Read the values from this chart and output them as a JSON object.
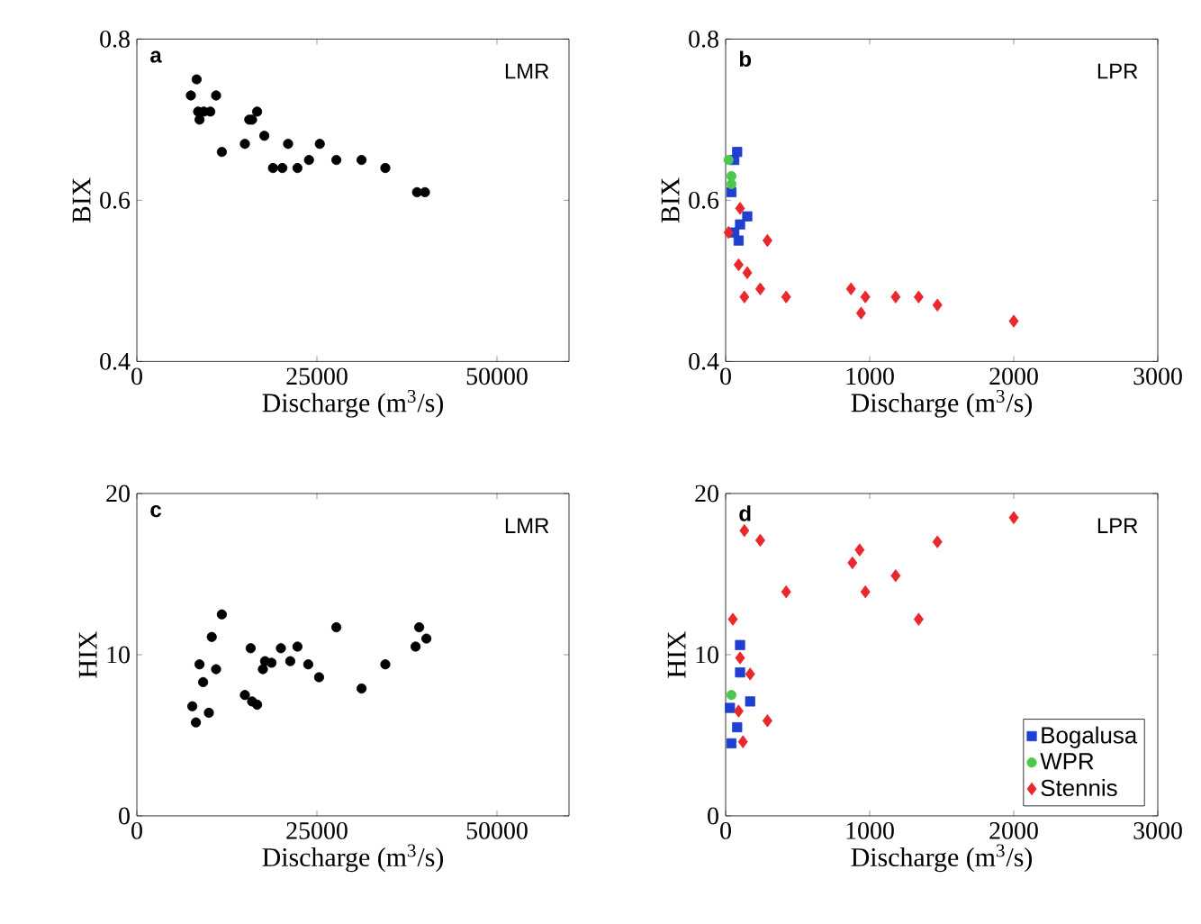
{
  "chart_data": [
    {
      "type": "scatter",
      "xlabel": "Discharge (m$^{3}$/s)",
      "ylabel": "BIX",
      "annotations": [
        "a",
        "LMR"
      ],
      "xlim": [
        0,
        60000
      ],
      "xticks": [
        0,
        25000,
        50000
      ],
      "ylim": [
        0.4,
        0.8
      ],
      "yticks": [
        0.4,
        0.6,
        0.8
      ],
      "grid": false,
      "legend": false,
      "series": [
        {
          "color": "#000000",
          "marker": "circle",
          "x": [
            8300,
            7500,
            11000,
            8500,
            9300,
            10200,
            8700,
            11800,
            15000,
            16700,
            16000,
            15600,
            17700,
            21000,
            18900,
            20200,
            22300,
            23900,
            25400,
            27700,
            31200,
            34500,
            38900,
            40000
          ],
          "values": [
            0.75,
            0.73,
            0.73,
            0.71,
            0.71,
            0.71,
            0.7,
            0.66,
            0.67,
            0.71,
            0.7,
            0.7,
            0.68,
            0.67,
            0.64,
            0.64,
            0.64,
            0.65,
            0.67,
            0.65,
            0.65,
            0.64,
            0.61,
            0.61
          ]
        }
      ]
    },
    {
      "type": "scatter",
      "xlabel": "Discharge (m$^{3}$/s)",
      "ylabel": "BIX",
      "annotations": [
        "b",
        "LPR"
      ],
      "xlim": [
        0,
        3000
      ],
      "xticks": [
        0,
        1000,
        2000,
        3000
      ],
      "ylim": [
        0.4,
        0.8
      ],
      "yticks": [
        0.4,
        0.6,
        0.8
      ],
      "grid": false,
      "legend": false,
      "series": [
        {
          "color": "#1f3fd0",
          "marker": "square",
          "x": [
            80,
            60,
            40,
            150,
            100,
            90,
            60
          ],
          "values": [
            0.66,
            0.65,
            0.61,
            0.58,
            0.57,
            0.55,
            0.56
          ]
        },
        {
          "color": "#4cc84c",
          "marker": "circle",
          "x": [
            20,
            40,
            40
          ],
          "values": [
            0.65,
            0.63,
            0.62
          ]
        },
        {
          "color": "#e8282c",
          "marker": "diamond",
          "x": [
            100,
            20,
            290,
            90,
            150,
            130,
            240,
            420,
            870,
            970,
            940,
            1180,
            1340,
            1470,
            2000
          ],
          "values": [
            0.59,
            0.56,
            0.55,
            0.52,
            0.51,
            0.48,
            0.49,
            0.48,
            0.49,
            0.48,
            0.46,
            0.48,
            0.48,
            0.47,
            0.45
          ]
        }
      ]
    },
    {
      "type": "scatter",
      "xlabel": "Discharge (m$^{3}$/s)",
      "ylabel": "HIX",
      "annotations": [
        "c",
        "LMR"
      ],
      "xlim": [
        0,
        60000
      ],
      "xticks": [
        0,
        25000,
        50000
      ],
      "ylim": [
        0,
        20
      ],
      "yticks": [
        0,
        10,
        20
      ],
      "grid": false,
      "legend": false,
      "series": [
        {
          "color": "#000000",
          "marker": "circle",
          "x": [
            11800,
            10400,
            8700,
            11000,
            9200,
            7700,
            8200,
            10000,
            15800,
            15000,
            16000,
            16700,
            17800,
            17500,
            18700,
            20000,
            21300,
            22300,
            23800,
            25300,
            27700,
            31200,
            34500,
            39200,
            40200,
            38700
          ],
          "values": [
            12.5,
            11.1,
            9.4,
            9.1,
            8.3,
            6.8,
            5.8,
            6.4,
            10.4,
            7.5,
            7.1,
            6.9,
            9.6,
            9.1,
            9.5,
            10.4,
            9.6,
            10.5,
            9.4,
            8.6,
            11.7,
            7.9,
            9.4,
            11.7,
            11.0,
            10.5
          ]
        }
      ]
    },
    {
      "type": "scatter",
      "xlabel": "Discharge (m$^{3}$/s)",
      "ylabel": "HIX",
      "annotations": [
        "d",
        "LPR"
      ],
      "xlim": [
        0,
        3000
      ],
      "xticks": [
        0,
        1000,
        2000,
        3000
      ],
      "ylim": [
        0,
        20
      ],
      "yticks": [
        0,
        10,
        20
      ],
      "grid": false,
      "legend": "bottom right",
      "series": [
        {
          "name": "Bogalusa",
          "color": "#1f3fd0",
          "marker": "square",
          "x": [
            100,
            100,
            170,
            30,
            80,
            40
          ],
          "values": [
            10.6,
            8.9,
            7.1,
            6.7,
            5.5,
            4.5
          ]
        },
        {
          "name": "WPR",
          "color": "#4cc84c",
          "marker": "circle",
          "x": [
            40
          ],
          "values": [
            7.5
          ]
        },
        {
          "name": "Stennis",
          "color": "#e8282c",
          "marker": "diamond",
          "x": [
            130,
            240,
            930,
            880,
            1470,
            2000,
            1180,
            420,
            970,
            1340,
            50,
            100,
            170,
            90,
            290,
            120
          ],
          "values": [
            17.7,
            17.1,
            16.5,
            15.7,
            17.0,
            18.5,
            14.9,
            13.9,
            13.9,
            12.2,
            12.2,
            9.8,
            8.8,
            6.5,
            5.9,
            4.6
          ]
        }
      ]
    }
  ]
}
